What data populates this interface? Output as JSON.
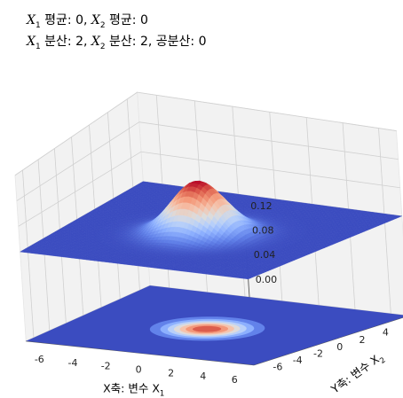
{
  "chart_data": {
    "type": "surface3d",
    "subtitle_line1": {
      "x1": "X",
      "x1_sub": "1",
      "mean_label": " 평균: 0,  ",
      "x2": "X",
      "x2_sub": "2",
      "mean2_label": " 평균: 0"
    },
    "subtitle_line2": {
      "x1": "X",
      "x1_sub": "1",
      "var_label": " 분산: 2,  ",
      "x2": "X",
      "x2_sub": "2",
      "var2_label": " 분산: 2,  공분산: 0"
    },
    "xlabel": "X축: 변수 X",
    "xlabel_sub": "1",
    "ylabel": "Y축: 변수 X",
    "ylabel_sub": "2",
    "x_ticks": [
      "-6",
      "-4",
      "-2",
      "0",
      "2",
      "4",
      "6"
    ],
    "y_ticks": [
      "-6",
      "-4",
      "-2",
      "0",
      "2",
      "4",
      "6"
    ],
    "z_ticks": [
      "0.00",
      "0.04",
      "0.08",
      "0.12"
    ],
    "xlim": [
      -7,
      7
    ],
    "ylim": [
      -7,
      7
    ],
    "zlim": [
      -0.14,
      0.12
    ],
    "distribution": {
      "mean": [
        0,
        0
      ],
      "variance": [
        2,
        2
      ],
      "covariance": 0
    },
    "colormap": "coolwarm",
    "colors": {
      "low": "#3b4cc0",
      "mid": "#dddcdc",
      "high": "#b40426"
    }
  }
}
